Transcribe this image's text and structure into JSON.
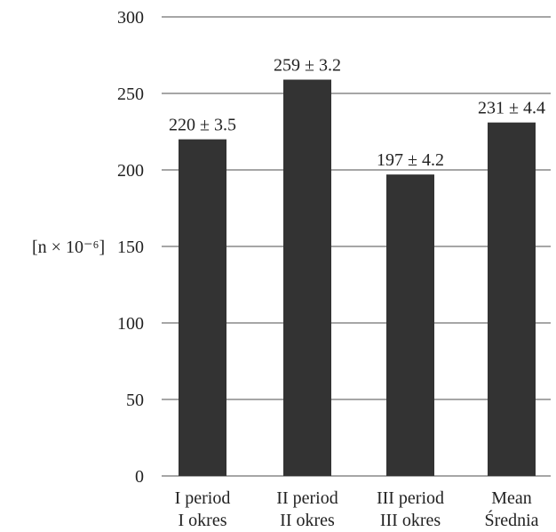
{
  "chart_data": {
    "type": "bar",
    "title": "",
    "xlabel": "",
    "ylabel": "[n × 10⁻⁶]",
    "ylim": [
      0,
      300
    ],
    "yticks": [
      0,
      50,
      100,
      150,
      200,
      250,
      300
    ],
    "grid": true,
    "bar_color": "#333333",
    "categories": [
      [
        "I period",
        "I okres"
      ],
      [
        "II period",
        "II okres"
      ],
      [
        "III period",
        "III okres"
      ],
      [
        "Mean",
        "Średnia"
      ]
    ],
    "values": [
      220,
      259,
      197,
      231
    ],
    "errors": [
      3.5,
      3.2,
      4.2,
      4.4
    ],
    "data_labels": [
      "220 ± 3.5",
      "259 ± 3.2",
      "197 ± 4.2",
      "231 ± 4.4"
    ]
  }
}
